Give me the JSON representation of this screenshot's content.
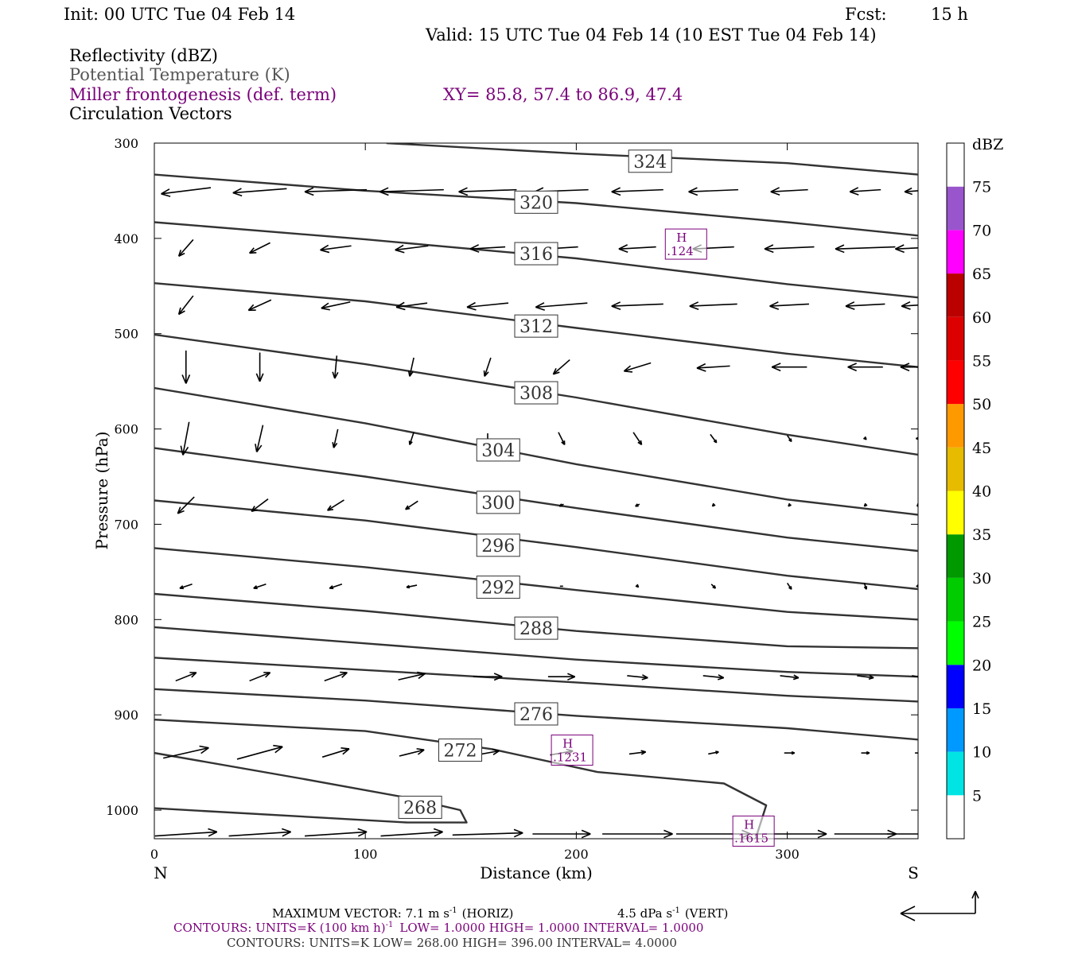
{
  "header": {
    "init": "Init: 00 UTC Tue 04 Feb 14",
    "fcst_label": "Fcst:",
    "fcst_value": "15 h",
    "valid": "Valid: 15 UTC Tue 04 Feb 14 (10 EST Tue 04 Feb 14)",
    "field_1": "Reflectivity (dBZ)",
    "field_2": "Potential Temperature (K)",
    "field_3": "Miller frontogenesis (def. term)",
    "xy": "XY=  85.8, 57.4 to  86.9, 47.4",
    "field_4": "Circulation Vectors"
  },
  "colors": {
    "text": "#000000",
    "gray": "#555555",
    "purple": "#7a007a",
    "contour": "#333333"
  },
  "chart_data": {
    "type": "cross-section",
    "xlabel": "Distance (km)",
    "ylabel": "Pressure (hPa)",
    "xlim": [
      0,
      362
    ],
    "ylim": [
      1030,
      300
    ],
    "x_ticks": [
      0,
      100,
      200,
      300
    ],
    "y_ticks": [
      300,
      400,
      500,
      600,
      700,
      800,
      900,
      1000
    ],
    "left_end_label": "N",
    "right_end_label": "S",
    "theta_contours": [
      {
        "label": "324",
        "label_at": [
          235,
          319
        ],
        "points": [
          [
            110,
            300
          ],
          [
            200,
            311
          ],
          [
            300,
            321
          ],
          [
            362,
            333
          ]
        ]
      },
      {
        "label": "320",
        "label_at": [
          181,
          362
        ],
        "points": [
          [
            0,
            333
          ],
          [
            100,
            350
          ],
          [
            200,
            363
          ],
          [
            300,
            383
          ],
          [
            362,
            397
          ]
        ]
      },
      {
        "label": "316",
        "label_at": [
          181,
          416
        ],
        "points": [
          [
            0,
            383
          ],
          [
            100,
            401
          ],
          [
            200,
            421
          ],
          [
            300,
            448
          ],
          [
            362,
            462
          ]
        ]
      },
      {
        "label": "312",
        "label_at": [
          181,
          492
        ],
        "points": [
          [
            0,
            447
          ],
          [
            100,
            466
          ],
          [
            200,
            494
          ],
          [
            300,
            521
          ],
          [
            362,
            535
          ]
        ]
      },
      {
        "label": "308",
        "label_at": [
          181,
          562
        ],
        "points": [
          [
            0,
            501
          ],
          [
            100,
            532
          ],
          [
            200,
            567
          ],
          [
            300,
            606
          ],
          [
            362,
            627
          ]
        ]
      },
      {
        "label": "304",
        "label_at": [
          163,
          622
        ],
        "points": [
          [
            0,
            557
          ],
          [
            100,
            594
          ],
          [
            200,
            637
          ],
          [
            300,
            674
          ],
          [
            362,
            690
          ]
        ]
      },
      {
        "label": "300",
        "label_at": [
          163,
          677
        ],
        "points": [
          [
            0,
            620
          ],
          [
            100,
            650
          ],
          [
            200,
            683
          ],
          [
            300,
            714
          ],
          [
            362,
            728
          ]
        ]
      },
      {
        "label": "296",
        "label_at": [
          163,
          722
        ],
        "points": [
          [
            0,
            675
          ],
          [
            100,
            696
          ],
          [
            200,
            724
          ],
          [
            300,
            754
          ],
          [
            362,
            768
          ]
        ]
      },
      {
        "label": "292",
        "label_at": [
          163,
          766
        ],
        "points": [
          [
            0,
            725
          ],
          [
            100,
            745
          ],
          [
            200,
            769
          ],
          [
            300,
            792
          ],
          [
            362,
            800
          ]
        ]
      },
      {
        "label": "288",
        "label_at": [
          181,
          809
        ],
        "points": [
          [
            0,
            773
          ],
          [
            100,
            791
          ],
          [
            200,
            812
          ],
          [
            300,
            828
          ],
          [
            362,
            830
          ]
        ]
      },
      {
        "label": "",
        "label_at": null,
        "points": [
          [
            0,
            808
          ],
          [
            100,
            825
          ],
          [
            200,
            842
          ],
          [
            300,
            855
          ],
          [
            362,
            860
          ]
        ]
      },
      {
        "label": "",
        "label_at": null,
        "points": [
          [
            0,
            840
          ],
          [
            100,
            853
          ],
          [
            200,
            866
          ],
          [
            300,
            880
          ],
          [
            362,
            886
          ]
        ]
      },
      {
        "label": "276",
        "label_at": [
          181,
          899
        ],
        "points": [
          [
            0,
            873
          ],
          [
            100,
            885
          ],
          [
            200,
            901
          ],
          [
            300,
            914
          ],
          [
            362,
            926
          ]
        ]
      },
      {
        "label": "272",
        "label_at": [
          145,
          937
        ],
        "points": [
          [
            0,
            905
          ],
          [
            100,
            917
          ],
          [
            160,
            936
          ],
          [
            210,
            960
          ],
          [
            270,
            972
          ],
          [
            290,
            995
          ],
          [
            285,
            1030
          ]
        ]
      },
      {
        "label": "268",
        "label_at": [
          126,
          997
        ],
        "points": [
          [
            0,
            940
          ],
          [
            70,
            967
          ],
          [
            120,
            987
          ],
          [
            145,
            1000
          ],
          [
            148,
            1013
          ],
          [
            120,
            1013
          ],
          [
            0,
            998
          ]
        ]
      }
    ],
    "frontogenesis_maxima": [
      {
        "label": "H",
        "value": ".124",
        "x": 252,
        "p": 406
      },
      {
        "label": "H",
        "value": ".1231",
        "x": 198,
        "p": 937
      },
      {
        "label": "H",
        "value": ".1615",
        "x": 284,
        "p": 1022
      }
    ],
    "reflectivity_colorbar": {
      "unit": "dBZ",
      "levels": [
        5,
        10,
        15,
        20,
        25,
        30,
        35,
        40,
        45,
        50,
        55,
        60,
        65,
        70,
        75
      ],
      "colors": [
        "#ffffff",
        "#00e4e4",
        "#0099ff",
        "#0000ff",
        "#00ff00",
        "#00cc00",
        "#009900",
        "#ffff00",
        "#e6bb00",
        "#ff9900",
        "#ff0000",
        "#dd0000",
        "#bb0000",
        "#ff00ff",
        "#9955cc",
        "#ffffff"
      ]
    },
    "vectors": {
      "x_positions": [
        15,
        50,
        86,
        122,
        158,
        193,
        229,
        265,
        301,
        337,
        362
      ],
      "rows": [
        {
          "p": 350,
          "u": [
            -24,
            -26,
            -30,
            -31,
            -28,
            -26,
            -25,
            -24,
            -18,
            -15,
            -13
          ],
          "w": [
            3,
            2,
            1,
            1,
            1,
            1,
            1,
            1,
            1,
            1,
            1
          ]
        },
        {
          "p": 410,
          "u": [
            -7,
            -10,
            -15,
            -16,
            -17,
            -16,
            -18,
            -20,
            -24,
            -29,
            -22
          ],
          "w": [
            8,
            5,
            2,
            2,
            1,
            1,
            1,
            1,
            1,
            1,
            1
          ]
        },
        {
          "p": 470,
          "u": [
            -7,
            -11,
            -14,
            -15,
            -20,
            -25,
            -25,
            -23,
            -19,
            -19,
            -16
          ],
          "w": [
            9,
            5,
            3,
            2,
            2,
            2,
            1,
            1,
            1,
            1,
            1
          ]
        },
        {
          "p": 535,
          "u": [
            0,
            0,
            -1,
            -2,
            -3,
            -8,
            -13,
            -16,
            -17,
            -17,
            -17
          ],
          "w": [
            16,
            14,
            11,
            9,
            9,
            7,
            4,
            1,
            0,
            0,
            0
          ]
        },
        {
          "p": 610,
          "u": [
            -3,
            -3,
            -2,
            -2,
            0,
            3,
            4,
            3,
            2,
            1,
            -2
          ],
          "w": [
            16,
            13,
            9,
            6,
            5,
            6,
            6,
            4,
            3,
            1,
            0
          ]
        },
        {
          "p": 680,
          "u": [
            -8,
            -8,
            -8,
            -6,
            -4,
            -2,
            -2,
            -1,
            -1,
            -1,
            -1
          ],
          "w": [
            8,
            6,
            5,
            4,
            2,
            1,
            1,
            1,
            1,
            1,
            1
          ]
        },
        {
          "p": 765,
          "u": [
            -6,
            -6,
            -6,
            -5,
            -2,
            0,
            1,
            2,
            2,
            1,
            1
          ],
          "w": [
            2,
            2,
            2,
            1,
            1,
            0,
            1,
            2,
            3,
            3,
            1
          ]
        },
        {
          "p": 860,
          "u": [
            10,
            10,
            11,
            13,
            14,
            13,
            10,
            10,
            9,
            8,
            6
          ],
          "w": [
            -4,
            -4,
            -4,
            -3,
            0,
            0,
            1,
            1,
            1,
            1,
            1
          ]
        },
        {
          "p": 940,
          "u": [
            22,
            22,
            13,
            12,
            11,
            11,
            8,
            5,
            5,
            4,
            3
          ],
          "w": [
            -5,
            -6,
            -4,
            -3,
            -2,
            -2,
            -1,
            -1,
            0,
            0,
            0
          ]
        },
        {
          "p": 1025,
          "u": [
            30,
            30,
            30,
            30,
            34,
            28,
            34,
            36,
            36,
            30,
            30
          ],
          "w": [
            -2,
            -2,
            -2,
            -2,
            -1,
            0,
            0,
            0,
            0,
            0,
            0
          ]
        }
      ]
    }
  },
  "footer": {
    "max_vector": "MAXIMUM VECTOR:   7.1 m s",
    "max_vector_sup": "-1",
    "max_vector_horiz": "(HORIZ)",
    "max_vector_vert": "4.5 dPa s",
    "max_vector_vert_sup": "-1",
    "max_vector_vert_tail": "(VERT)",
    "contours_1a": "CONTOURS:  UNITS=K (100 km h)",
    "contours_1_sup": "-1",
    "contours_1b": "LOW=   1.0000      HIGH=   1.0000      INTERVAL=    1.0000",
    "contours_2": "CONTOURS:  UNITS=K   LOW=   268.00       HIGH=   396.00       INTERVAL=    4.0000"
  }
}
